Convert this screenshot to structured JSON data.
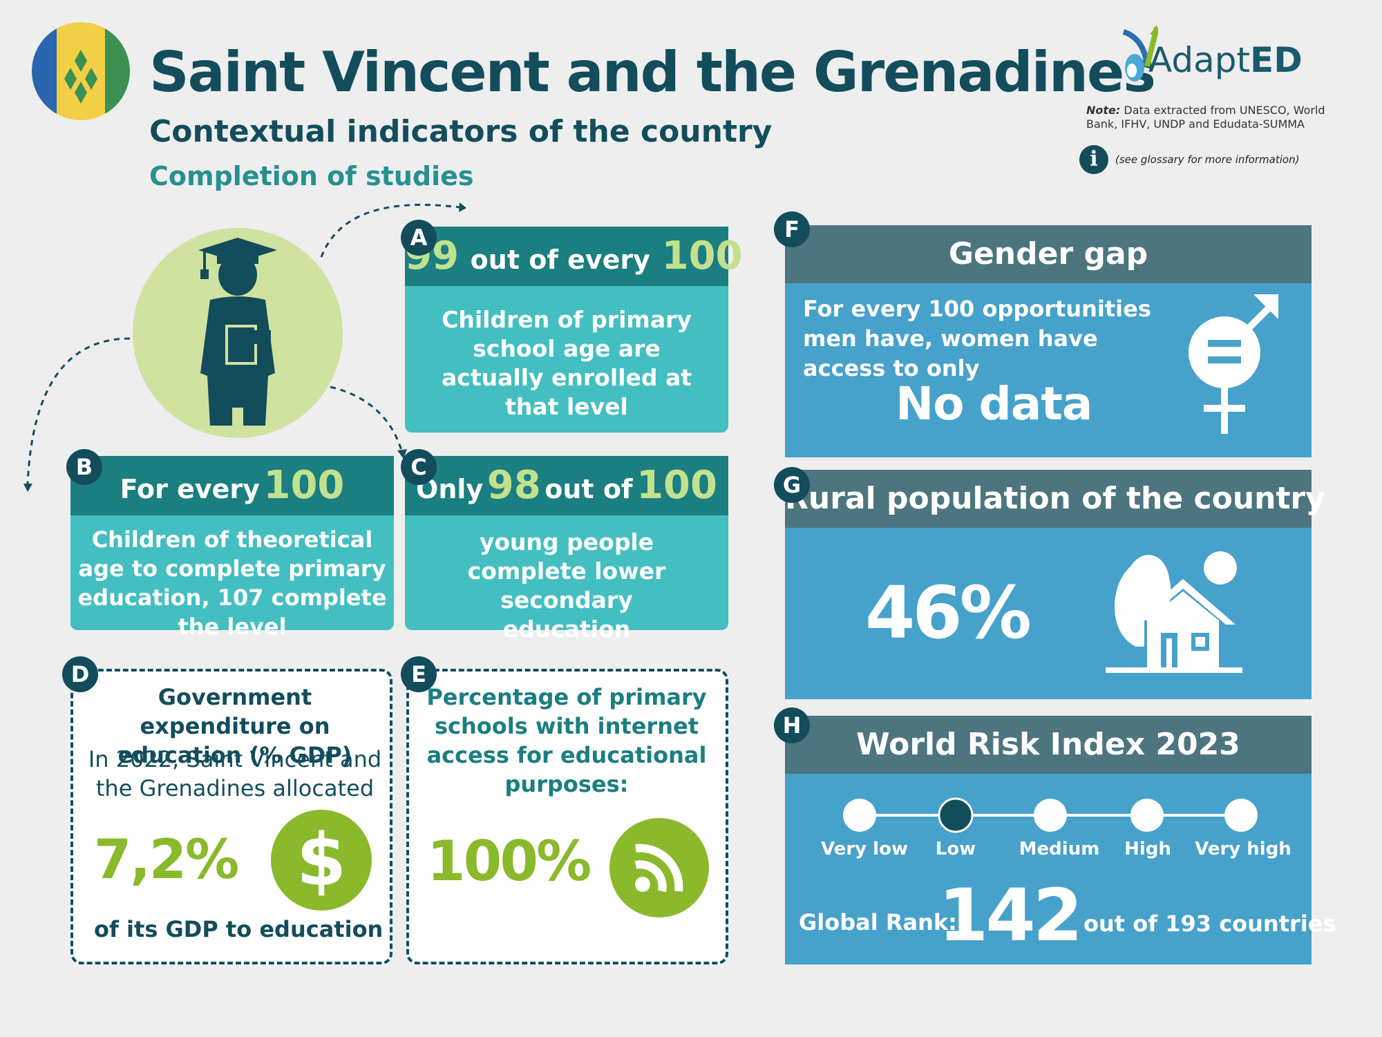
{
  "header": {
    "title": "Saint Vincent and the Grenadines",
    "subtitle": "Contextual indicators of the country",
    "section": "Completion of studies"
  },
  "logo": {
    "text_light": "Adapt",
    "text_bold": "ED"
  },
  "note": {
    "label": "Note:",
    "text": "Data extracted from UNESCO, World Bank, IFHV, UNDP and Edudata-SUMMA",
    "info_icon": "i",
    "info_text": "(see glossary for more information)"
  },
  "colors": {
    "navy": "#134d5c",
    "teal_dark": "#1b7e80",
    "teal_light": "#43bec1",
    "blue": "#46a1cb",
    "green": "#8ab92b"
  },
  "card_a": {
    "badge": "A",
    "value": "99",
    "mid": "out of every",
    "total": "100",
    "body": "Children of primary school age are actually enrolled at that level"
  },
  "card_b": {
    "badge": "B",
    "prefix": "For every",
    "total": "100",
    "body": "Children of theoretical age to complete primary education, 107 complete the level"
  },
  "card_c": {
    "badge": "C",
    "prefix": "Only",
    "value": "98",
    "mid": "out of",
    "total": "100",
    "body": "young people complete lower secondary education"
  },
  "card_d": {
    "badge": "D",
    "heading": "Government expenditure on education (% GDP)",
    "intro": "In 2022, Saint Vincent and the Grenadines allocated",
    "value": "7,2%",
    "footer": "of its GDP to education",
    "icon": "dollar-icon"
  },
  "card_e": {
    "badge": "E",
    "heading": "Percentage of primary schools with internet access for educational purposes:",
    "value": "100%",
    "icon": "wifi-icon"
  },
  "card_f": {
    "badge": "F",
    "heading": "Gender gap",
    "body": "For every 100 opportunities men have, women have access to only",
    "value": "No data",
    "icon": "gender-equality-icon"
  },
  "card_g": {
    "badge": "G",
    "heading": "Rural population of the country",
    "value": "46%",
    "icon": "rural-house-icon"
  },
  "card_h": {
    "badge": "H",
    "heading": "World Risk Index 2023",
    "levels": [
      "Very low",
      "Low",
      "Medium",
      "High",
      "Very high"
    ],
    "selected_level": "Low",
    "rank_label": "Global Rank:",
    "rank": "142",
    "rank_suffix": "out of 193 countries"
  }
}
